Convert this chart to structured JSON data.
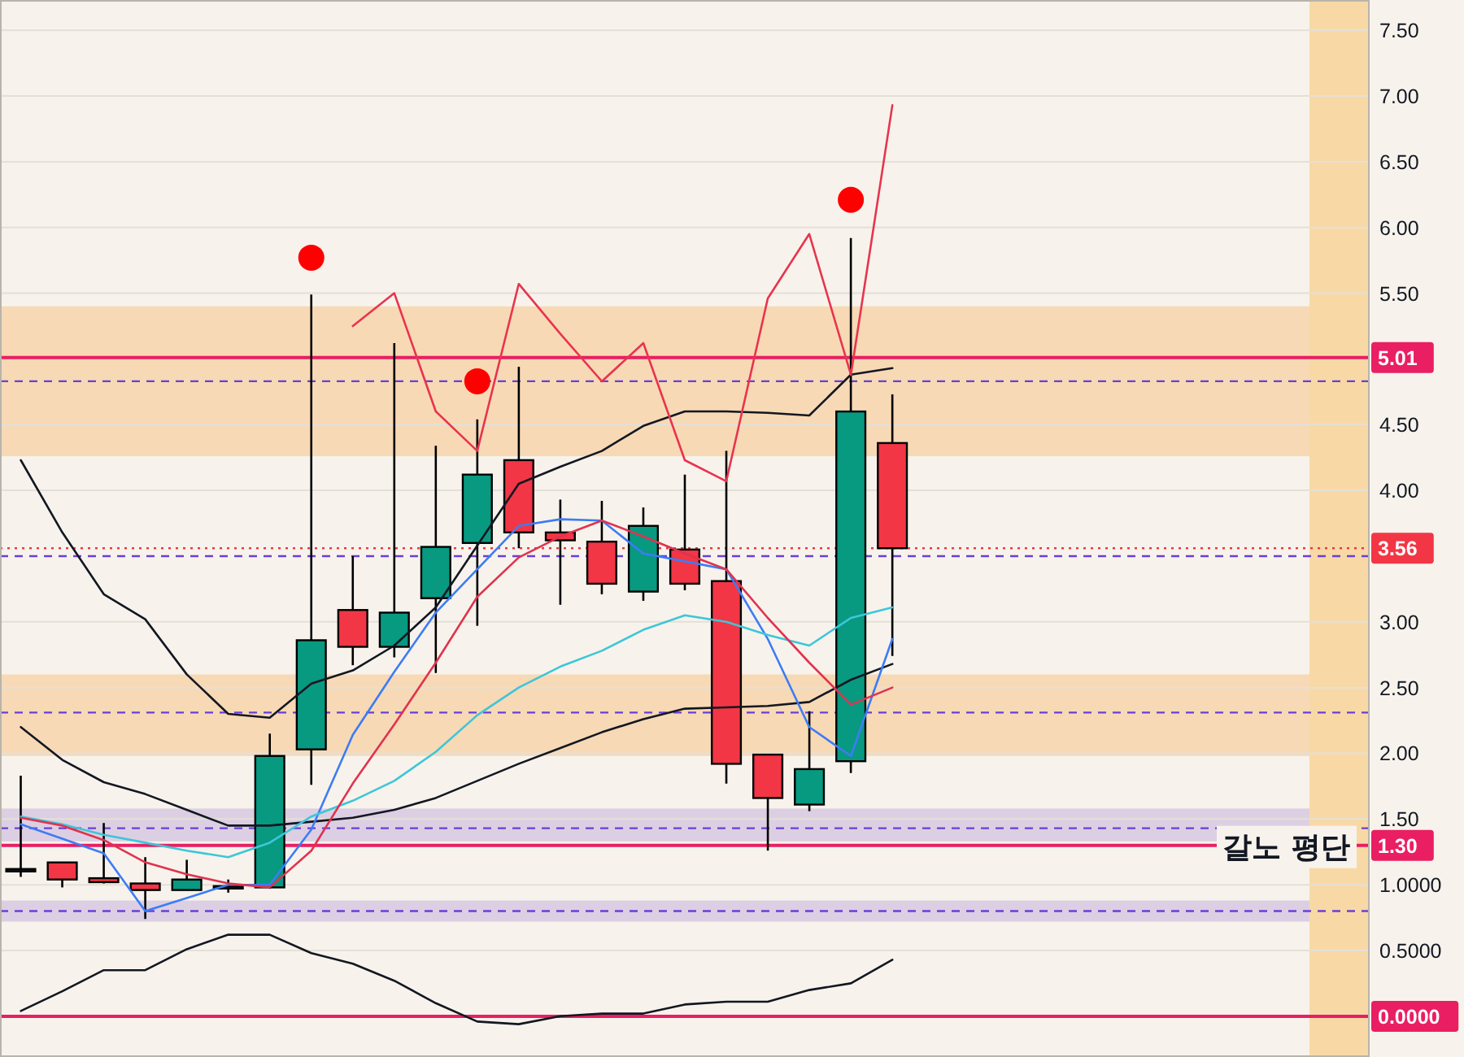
{
  "chart_data": {
    "type": "candlestick",
    "categories": [
      null,
      null,
      null,
      null,
      null,
      null,
      null,
      null,
      null,
      null,
      null,
      null,
      null,
      null,
      null,
      null,
      null,
      null,
      null,
      null,
      null,
      null,
      null,
      null,
      null,
      null,
      null,
      null,
      null,
      null,
      null,
      null,
      null
    ],
    "ohlc": [
      [
        1.12,
        1.83,
        1.06,
        1.12
      ],
      [
        1.17,
        1.17,
        0.98,
        1.04
      ],
      [
        1.05,
        1.47,
        1.01,
        1.02
      ],
      [
        1.01,
        1.21,
        0.74,
        0.96
      ],
      [
        0.96,
        1.19,
        0.96,
        1.04
      ],
      [
        0.98,
        1.04,
        0.94,
        0.99
      ],
      [
        0.98,
        2.15,
        0.97,
        1.98
      ],
      [
        2.03,
        5.49,
        1.76,
        2.86
      ],
      [
        3.09,
        3.5,
        2.67,
        2.81
      ],
      [
        2.81,
        5.12,
        2.73,
        3.07
      ],
      [
        3.18,
        4.34,
        2.61,
        3.57
      ],
      [
        3.6,
        4.54,
        2.97,
        4.12
      ],
      [
        4.23,
        4.94,
        3.56,
        3.68
      ],
      [
        3.68,
        3.93,
        3.13,
        3.62
      ],
      [
        3.61,
        3.92,
        3.21,
        3.29
      ],
      [
        3.23,
        3.87,
        3.16,
        3.73
      ],
      [
        3.55,
        4.12,
        3.24,
        3.29
      ],
      [
        3.31,
        4.3,
        1.77,
        1.92
      ],
      [
        1.99,
        1.99,
        1.26,
        1.66
      ],
      [
        1.61,
        2.32,
        1.56,
        1.88
      ],
      [
        1.94,
        5.92,
        1.85,
        4.6
      ],
      [
        4.36,
        4.73,
        2.74,
        3.56
      ],
      null,
      null,
      null,
      null,
      null,
      null,
      null,
      null,
      null,
      null,
      null
    ],
    "colors": [
      "#131722",
      "#f23645",
      "#f23645",
      "#f23645",
      "#089981",
      "#131722",
      "#089981",
      "#089981",
      "#f23645",
      "#089981",
      "#089981",
      "#089981",
      "#f23645",
      "#f23645",
      "#f23645",
      "#089981",
      "#f23645",
      "#f23645",
      "#f23645",
      "#089981",
      "#089981",
      "#f23645",
      null,
      null,
      null,
      null,
      null,
      null,
      null,
      null,
      null,
      null,
      null
    ],
    "series": [
      {
        "type": "line",
        "color": "#131722",
        "values": [
          4.23,
          3.68,
          3.21,
          3.02,
          2.6,
          2.3,
          2.27,
          2.53,
          2.63,
          2.82,
          3.11,
          3.58,
          4.05,
          4.18,
          4.3,
          4.49,
          4.6,
          4.6,
          4.59,
          4.57,
          4.88,
          4.93,
          null,
          null,
          null,
          null,
          null,
          null,
          null,
          null,
          null,
          null,
          null
        ]
      },
      {
        "type": "line",
        "color": "#131722",
        "values": [
          2.2,
          1.95,
          1.78,
          1.69,
          1.57,
          1.45,
          1.45,
          1.48,
          1.51,
          1.57,
          1.66,
          1.79,
          1.92,
          2.04,
          2.16,
          2.26,
          2.34,
          2.35,
          2.36,
          2.39,
          2.56,
          2.68,
          null,
          null,
          null,
          null,
          null,
          null,
          null,
          null,
          null,
          null,
          null
        ]
      },
      {
        "type": "line",
        "color": "#131722",
        "values": [
          0.04,
          0.19,
          0.35,
          0.35,
          0.51,
          0.62,
          0.62,
          0.48,
          0.4,
          0.27,
          0.1,
          -0.04,
          -0.06,
          0.0,
          0.02,
          0.02,
          0.09,
          0.11,
          0.11,
          0.2,
          0.25,
          0.43,
          null,
          null,
          null,
          null,
          null,
          null,
          null,
          null,
          null,
          null,
          null
        ]
      },
      {
        "type": "line",
        "color": "#3d7cf5",
        "values": [
          1.46,
          1.35,
          1.24,
          0.8,
          0.9,
          1.0,
          1.0,
          1.42,
          2.14,
          2.62,
          3.07,
          3.4,
          3.73,
          3.78,
          3.77,
          3.52,
          3.46,
          3.4,
          2.87,
          2.2,
          1.98,
          2.87,
          null,
          null,
          null,
          null,
          null,
          null,
          null,
          null,
          null,
          null,
          null
        ]
      },
      {
        "type": "line",
        "color": "#3ec6d8",
        "values": [
          1.52,
          1.46,
          1.38,
          1.32,
          1.26,
          1.21,
          1.32,
          1.52,
          1.64,
          1.79,
          2.01,
          2.29,
          2.5,
          2.66,
          2.78,
          2.94,
          3.05,
          3.0,
          2.9,
          2.82,
          3.03,
          3.11,
          null,
          null,
          null,
          null,
          null,
          null,
          null,
          null,
          null,
          null,
          null
        ]
      },
      {
        "type": "line",
        "color": "#e0334f",
        "values": [
          1.51,
          1.45,
          1.34,
          1.17,
          1.08,
          1.01,
          0.98,
          1.26,
          1.77,
          2.22,
          2.69,
          3.19,
          3.49,
          3.65,
          3.77,
          3.65,
          3.52,
          3.4,
          3.03,
          2.69,
          2.37,
          2.5,
          null,
          null,
          null,
          null,
          null,
          null,
          null,
          null,
          null,
          null,
          null
        ]
      },
      {
        "type": "line",
        "color": "#e8344e",
        "values": [
          null,
          null,
          null,
          null,
          null,
          null,
          null,
          null,
          5.25,
          5.5,
          4.6,
          4.3,
          5.57,
          5.19,
          4.83,
          5.12,
          4.23,
          4.07,
          5.46,
          5.95,
          4.88,
          6.93,
          null,
          null,
          null,
          null,
          null,
          null,
          null,
          null,
          null,
          null,
          null
        ]
      },
      {
        "type": "scatter",
        "marker": "circle",
        "color": "#ff0000",
        "values": [
          null,
          null,
          null,
          null,
          null,
          null,
          null,
          5.77,
          null,
          null,
          null,
          4.83,
          null,
          null,
          null,
          null,
          null,
          null,
          null,
          null,
          6.21,
          null,
          null,
          null,
          null,
          null,
          null,
          null,
          null,
          null,
          null,
          null,
          null
        ]
      }
    ],
    "ylim": [
      -0.31,
      7.73
    ],
    "yticks": [
      {
        "value": 0.5,
        "label": "0.5000"
      },
      {
        "value": 1,
        "label": "1.0000"
      },
      {
        "value": 1.5,
        "label": "1.50"
      },
      {
        "value": 2,
        "label": "2.00"
      },
      {
        "value": 2.5,
        "label": "2.50"
      },
      {
        "value": 3,
        "label": "3.00"
      },
      {
        "value": 4,
        "label": "4.00"
      },
      {
        "value": 4.5,
        "label": "4.50"
      },
      {
        "value": 5.5,
        "label": "5.50"
      },
      {
        "value": 6,
        "label": "6.00"
      },
      {
        "value": 6.5,
        "label": "6.50"
      },
      {
        "value": 7,
        "label": "7.00"
      },
      {
        "value": 7.5,
        "label": "7.50"
      }
    ],
    "grid": "y",
    "ref_lines": [
      {
        "axis": "y",
        "value": 5.01,
        "label": "5.01",
        "color": "#e91e63",
        "line_style": "solid"
      },
      {
        "axis": "y",
        "value": 3.56,
        "label": "3.56",
        "color": "#f23645",
        "line_style": "dotted"
      },
      {
        "axis": "y",
        "value": 1.3,
        "label": "1.30",
        "color": "#e91e63",
        "line_style": "solid"
      },
      {
        "axis": "y",
        "value": 0,
        "label": "0.0000",
        "color": "#e91e63",
        "line_style": "solid"
      },
      {
        "axis": "y",
        "value": 4.83,
        "color": "#6a3fd8",
        "line_style": "dashed"
      },
      {
        "axis": "y",
        "value": 3.5,
        "color": "#6a3fd8",
        "line_style": "dashed"
      },
      {
        "axis": "y",
        "value": 2.31,
        "color": "#6a3fd8",
        "line_style": "dashed"
      },
      {
        "axis": "y",
        "value": 1.43,
        "color": "#6a3fd8",
        "line_style": "dashed"
      },
      {
        "axis": "y",
        "value": 0.8,
        "color": "#6a3fd8",
        "line_style": "dashed"
      }
    ],
    "bands": [
      {
        "axis": "y",
        "from": 4.26,
        "to": 5.4,
        "color": "#f7d9b5"
      },
      {
        "axis": "y",
        "from": 1.98,
        "to": 2.6,
        "color": "#f7d9b5"
      },
      {
        "axis": "y",
        "from": 1.33,
        "to": 1.58,
        "color": "#dccfe3"
      },
      {
        "axis": "y",
        "from": 0.72,
        "to": 0.88,
        "color": "#dccfe3"
      }
    ],
    "annotations": [
      {
        "text": "갈노 평단",
        "y": 1.3
      }
    ]
  }
}
